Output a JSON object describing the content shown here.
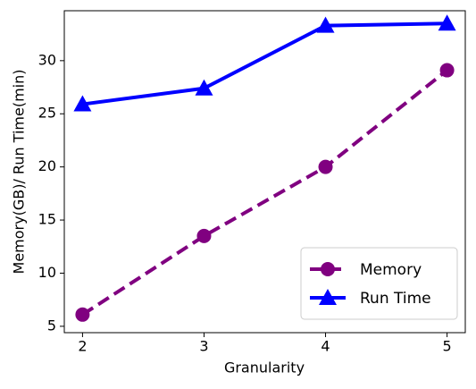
{
  "chart_data": {
    "type": "line",
    "x_label": "Granularity",
    "y_label": "Memory(GB)/ Run Time(min)",
    "x": [
      2,
      3,
      4,
      5
    ],
    "xlim": [
      1.85,
      5.15
    ],
    "xticks": [
      2,
      3,
      4,
      5
    ],
    "ylim": [
      4.4,
      34.7
    ],
    "yticks": [
      5,
      10,
      15,
      20,
      25,
      30
    ],
    "legend": "lower right",
    "series": [
      {
        "name": "Memory",
        "color": "#800080",
        "marker": "circle",
        "linestyle": "dashed",
        "values": [
          6.1,
          13.5,
          20.0,
          29.1
        ]
      },
      {
        "name": "Run Time",
        "color": "#0000ff",
        "marker": "triangle",
        "linestyle": "solid",
        "values": [
          25.9,
          27.4,
          33.3,
          33.5
        ]
      }
    ]
  }
}
